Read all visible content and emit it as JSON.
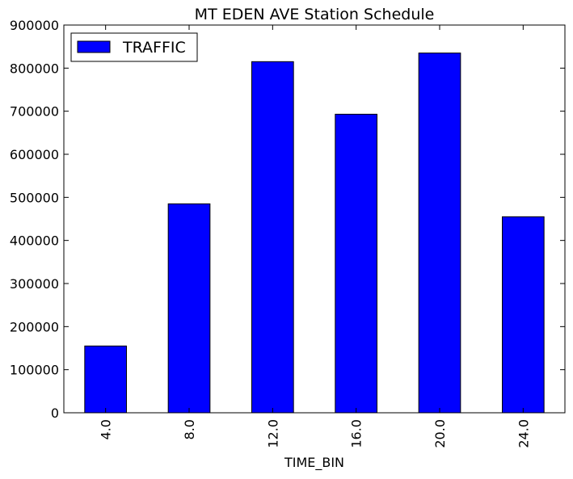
{
  "chart_data": {
    "type": "bar",
    "title": "MT EDEN AVE Station Schedule",
    "xlabel": "TIME_BIN",
    "ylabel": "",
    "categories": [
      "4.0",
      "8.0",
      "12.0",
      "16.0",
      "20.0",
      "24.0"
    ],
    "series": [
      {
        "name": "TRAFFIC",
        "values": [
          155000,
          485000,
          815000,
          693000,
          835000,
          455000
        ],
        "color": "#0000ff"
      }
    ],
    "ylim": [
      0,
      900000
    ],
    "yticks": [
      0,
      100000,
      200000,
      300000,
      400000,
      500000,
      600000,
      700000,
      800000,
      900000
    ],
    "ytick_labels": [
      "0",
      "100000",
      "200000",
      "300000",
      "400000",
      "500000",
      "600000",
      "700000",
      "800000",
      "900000"
    ],
    "grid": false,
    "legend_position": "top-left"
  }
}
